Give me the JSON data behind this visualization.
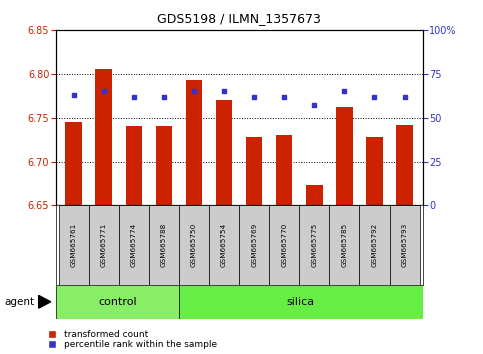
{
  "title": "GDS5198 / ILMN_1357673",
  "samples": [
    "GSM665761",
    "GSM665771",
    "GSM665774",
    "GSM665788",
    "GSM665750",
    "GSM665754",
    "GSM665769",
    "GSM665770",
    "GSM665775",
    "GSM665785",
    "GSM665792",
    "GSM665793"
  ],
  "bar_values": [
    6.745,
    6.806,
    6.741,
    6.741,
    6.793,
    6.77,
    6.728,
    6.73,
    6.673,
    6.762,
    6.728,
    6.742
  ],
  "percentile_values": [
    63,
    65,
    62,
    62,
    65,
    65,
    62,
    62,
    57,
    65,
    62,
    62
  ],
  "ylim_left": [
    6.65,
    6.85
  ],
  "ylim_right": [
    0,
    100
  ],
  "yticks_left": [
    6.65,
    6.7,
    6.75,
    6.8,
    6.85
  ],
  "yticks_right": [
    0,
    25,
    50,
    75,
    100
  ],
  "ytick_labels_right": [
    "0",
    "25",
    "50",
    "75",
    "100%"
  ],
  "bar_color": "#cc2200",
  "dot_color": "#3333cc",
  "bar_bottom": 6.65,
  "control_samples": 4,
  "control_label": "control",
  "silica_label": "silica",
  "agent_label": "agent",
  "legend_bar_label": "transformed count",
  "legend_dot_label": "percentile rank within the sample",
  "control_color": "#88ee66",
  "silica_color": "#66ee44",
  "grid_color": "#000000",
  "bg_color": "#ffffff",
  "axis_color_left": "#cc2200",
  "axis_color_right": "#3333cc",
  "label_bg": "#cccccc",
  "grid_lines": [
    6.7,
    6.75,
    6.8
  ]
}
